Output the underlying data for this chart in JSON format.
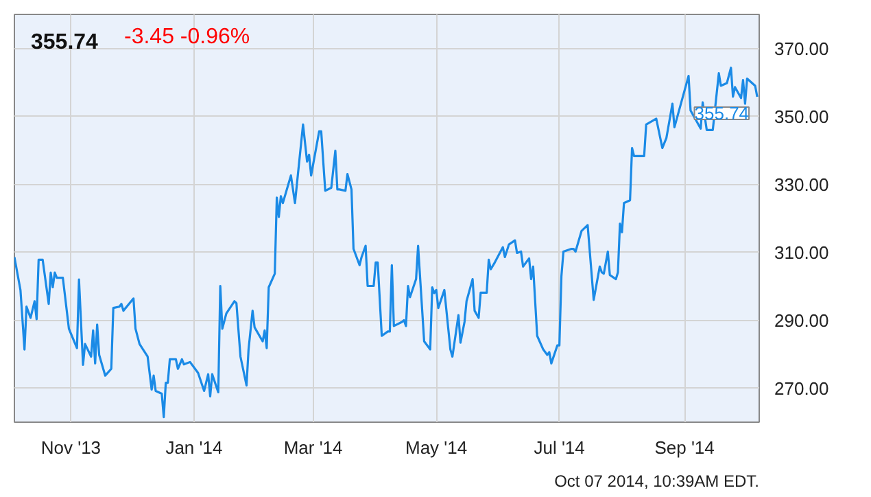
{
  "chart_data": {
    "type": "line",
    "title": "355.74",
    "subtitle": "-3.45  -0.96%",
    "x": [
      "2013-10-04",
      "2013-10-07",
      "2013-10-09",
      "2013-10-10",
      "2013-10-12",
      "2013-10-14",
      "2013-10-15",
      "2013-10-16",
      "2013-10-18",
      "2013-10-21",
      "2013-10-22",
      "2013-10-23",
      "2013-10-24",
      "2013-10-25",
      "2013-10-28",
      "2013-10-31",
      "2013-11-04",
      "2013-11-05",
      "2013-11-07",
      "2013-11-08",
      "2013-11-11",
      "2013-11-12",
      "2013-11-13",
      "2013-11-14",
      "2013-11-15",
      "2013-11-18",
      "2013-11-21",
      "2013-11-22",
      "2013-11-25",
      "2013-11-26",
      "2013-11-27",
      "2013-12-02",
      "2013-12-03",
      "2013-12-05",
      "2013-12-09",
      "2013-12-11",
      "2013-12-12",
      "2013-12-13",
      "2013-12-16",
      "2013-12-17",
      "2013-12-18",
      "2013-12-19",
      "2013-12-20",
      "2013-12-23",
      "2013-12-24",
      "2013-12-26",
      "2013-12-27",
      "2013-12-30",
      "2014-01-02",
      "2014-01-03",
      "2014-01-06",
      "2014-01-08",
      "2014-01-09",
      "2014-01-10",
      "2014-01-13",
      "2014-01-14",
      "2014-01-15",
      "2014-01-17",
      "2014-01-21",
      "2014-01-22",
      "2014-01-24",
      "2014-01-27",
      "2014-01-28",
      "2014-01-30",
      "2014-01-31",
      "2014-02-04",
      "2014-02-05",
      "2014-02-06",
      "2014-02-07",
      "2014-02-10",
      "2014-02-11",
      "2014-02-12",
      "2014-02-13",
      "2014-02-14",
      "2014-02-18",
      "2014-02-20",
      "2014-02-24",
      "2014-02-26",
      "2014-02-27",
      "2014-02-28",
      "2014-03-04",
      "2014-03-05",
      "2014-03-07",
      "2014-03-10",
      "2014-03-12",
      "2014-03-13",
      "2014-03-14",
      "2014-03-17",
      "2014-03-18",
      "2014-03-20",
      "2014-03-21",
      "2014-03-24",
      "2014-03-25",
      "2014-03-27",
      "2014-03-28",
      "2014-03-31",
      "2014-04-01",
      "2014-04-02",
      "2014-04-04",
      "2014-04-07",
      "2014-04-08",
      "2014-04-09",
      "2014-04-10",
      "2014-04-14",
      "2014-04-15",
      "2014-04-16",
      "2014-04-17",
      "2014-04-18",
      "2014-04-21",
      "2014-04-22",
      "2014-04-25",
      "2014-04-28",
      "2014-04-29",
      "2014-04-30",
      "2014-05-01",
      "2014-05-02",
      "2014-05-05",
      "2014-05-08",
      "2014-05-09",
      "2014-05-12",
      "2014-05-13",
      "2014-05-15",
      "2014-05-16",
      "2014-05-19",
      "2014-05-20",
      "2014-05-22",
      "2014-05-23",
      "2014-05-26",
      "2014-05-27",
      "2014-05-28",
      "2014-05-30",
      "2014-06-03",
      "2014-06-04",
      "2014-06-06",
      "2014-06-09",
      "2014-06-10",
      "2014-06-12",
      "2014-06-13",
      "2014-06-16",
      "2014-06-17",
      "2014-06-18",
      "2014-06-20",
      "2014-06-23",
      "2014-06-25",
      "2014-06-26",
      "2014-06-27",
      "2014-06-30",
      "2014-07-01",
      "2014-07-02",
      "2014-07-03",
      "2014-07-07",
      "2014-07-08",
      "2014-07-09",
      "2014-07-11",
      "2014-07-12",
      "2014-07-15",
      "2014-07-18",
      "2014-07-21",
      "2014-07-22",
      "2014-07-23",
      "2014-07-25",
      "2014-07-26",
      "2014-07-28",
      "2014-07-29",
      "2014-07-30",
      "2014-07-31",
      "2014-08-01",
      "2014-08-02",
      "2014-08-05",
      "2014-08-06",
      "2014-08-07",
      "2014-08-12",
      "2014-08-13",
      "2014-08-18",
      "2014-08-21",
      "2014-08-23",
      "2014-08-26",
      "2014-08-27",
      "2014-09-03",
      "2014-09-04",
      "2014-09-09",
      "2014-09-10",
      "2014-09-12",
      "2014-09-15",
      "2014-09-18",
      "2014-09-19",
      "2014-09-22",
      "2014-09-24",
      "2014-09-25",
      "2014-09-26",
      "2014-09-29",
      "2014-09-30",
      "2014-10-01",
      "2014-10-02",
      "2014-10-06",
      "2014-10-07"
    ],
    "series": [
      {
        "color": "#1a8ae6",
        "values": [
          308.6,
          298.9,
          281.4,
          294,
          290.7,
          295.6,
          290.3,
          307.8,
          307.8,
          294.8,
          304,
          299.7,
          304,
          302.5,
          302.5,
          287.5,
          281.8,
          302,
          276.9,
          283,
          279.3,
          287,
          277.3,
          288.7,
          279.8,
          273.7,
          275.7,
          293.6,
          294,
          294.8,
          292.8,
          296.4,
          287.5,
          283,
          279.3,
          269.6,
          273.7,
          269.2,
          268.4,
          261.5,
          271.6,
          271.6,
          278.5,
          278.5,
          275.7,
          278.5,
          277,
          277.7,
          275.3,
          274.5,
          269.2,
          274.1,
          267.6,
          274.1,
          268.8,
          300.1,
          287.5,
          292,
          295.6,
          295,
          279.3,
          270.8,
          281.4,
          292.8,
          287.9,
          283.8,
          287,
          281.8,
          299.7,
          303.7,
          326.1,
          320.4,
          326.5,
          324.5,
          332.6,
          324.5,
          347.6,
          336.7,
          338.7,
          332.6,
          345.6,
          345.6,
          328.1,
          329,
          339.9,
          328.5,
          328.5,
          328.1,
          333,
          328.5,
          311,
          306.2,
          308.6,
          311.9,
          300.1,
          300.1,
          307,
          307,
          285.4,
          286.7,
          286.7,
          306.2,
          288.3,
          289.5,
          290,
          288.3,
          300.1,
          296.8,
          302.1,
          311.9,
          283.8,
          281.4,
          299.7,
          298,
          298.9,
          293.6,
          298.9,
          281.4,
          279.3,
          291.5,
          283.4,
          289.5,
          295.6,
          302.1,
          292.8,
          290.7,
          298.1,
          298.1,
          307.8,
          305,
          307,
          311.5,
          308.6,
          312.3,
          313.5,
          309.8,
          310.2,
          305.8,
          308.2,
          302.1,
          305.8,
          285.4,
          281.4,
          279.8,
          280.6,
          277.3,
          282.6,
          282.6,
          302.9,
          310.2,
          311,
          311,
          310.2,
          314.3,
          316.3,
          318,
          296,
          305.8,
          304.1,
          303.7,
          310.2,
          303.3,
          302.5,
          302.1,
          304.1,
          318.4,
          315.9,
          324.5,
          325.3,
          340.7,
          338.3,
          338.3,
          347.6,
          349.3,
          340.7,
          343.6,
          353.7,
          346.8,
          361.9,
          351.7,
          346.4,
          354.1,
          346,
          346,
          362.7,
          359,
          359.8,
          364.3,
          355.8,
          358.6,
          355.4,
          360.7,
          353.7,
          361.1,
          359,
          355.74
        ]
      }
    ],
    "xlim": [
      "2013-10-04",
      "2014-10-08"
    ],
    "ylim": [
      260,
      380
    ],
    "xticks": [
      {
        "value": "2013-11-01",
        "label": "Nov '13"
      },
      {
        "value": "2014-01-01",
        "label": "Jan '14"
      },
      {
        "value": "2014-03-01",
        "label": "Mar '14"
      },
      {
        "value": "2014-05-01",
        "label": "May '14"
      },
      {
        "value": "2014-07-01",
        "label": "Jul '14"
      },
      {
        "value": "2014-09-01",
        "label": "Sep '14"
      }
    ],
    "yticks": [
      {
        "value": 270,
        "label": "270.00"
      },
      {
        "value": 290,
        "label": "290.00"
      },
      {
        "value": 310,
        "label": "310.00"
      },
      {
        "value": 330,
        "label": "330.00"
      },
      {
        "value": 350,
        "label": "350.00"
      },
      {
        "value": 370,
        "label": "370.00"
      }
    ],
    "grid": true,
    "annotations": [
      {
        "text": "355.74",
        "x": "2014-10-07",
        "y": 355.74
      },
      "Oct 07 2014, 10:39AM EDT."
    ]
  }
}
